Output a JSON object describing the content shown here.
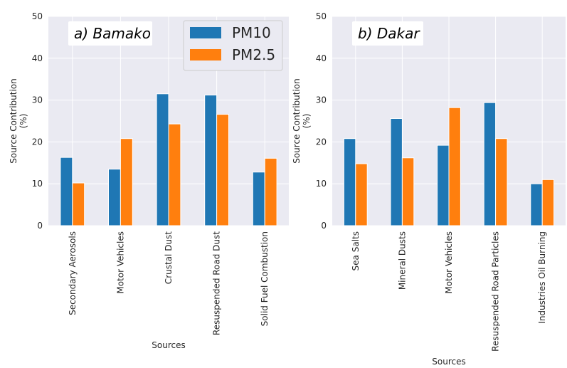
{
  "chart_data": [
    {
      "type": "bar",
      "title": "a) Bamako",
      "categories": [
        "Secondary Aerosols",
        "Motor Vehicles",
        "Crustal Dust",
        "Resuspended Road Dust",
        "Solid Fuel Combustion"
      ],
      "series": [
        {
          "name": "PM10",
          "values": [
            16.3,
            13.5,
            31.5,
            31.2,
            12.8
          ]
        },
        {
          "name": "PM2.5",
          "values": [
            10.2,
            20.8,
            24.3,
            26.6,
            16.1
          ]
        }
      ],
      "xlabel": "Sources",
      "ylabel": "Source Contribution\n(%)",
      "ylim": [
        0,
        50
      ],
      "yticks": [
        0,
        10,
        20,
        30,
        40,
        50
      ],
      "grid": true,
      "legend": "top-right"
    },
    {
      "type": "bar",
      "title": "b) Dakar",
      "categories": [
        "Sea Salts",
        "Mineral Dusts",
        "Motor Vehicles",
        "Resuspended Road Particles",
        "Industries Oil Burning"
      ],
      "series": [
        {
          "name": "PM10",
          "values": [
            20.8,
            25.6,
            19.2,
            29.4,
            10.0
          ]
        },
        {
          "name": "PM2.5",
          "values": [
            14.8,
            16.2,
            28.2,
            20.8,
            11.0
          ]
        }
      ],
      "xlabel": "Sources",
      "ylabel": "Source Contribution\n(%)",
      "ylim": [
        0,
        50
      ],
      "yticks": [
        0,
        10,
        20,
        30,
        40,
        50
      ],
      "grid": true
    }
  ],
  "legend": {
    "entries": [
      {
        "label": "PM10",
        "color": "#1f77b4"
      },
      {
        "label": "PM2.5",
        "color": "#ff7f0e"
      }
    ]
  },
  "colors": {
    "pm10": "#1f77b4",
    "pm25": "#ff7f0e",
    "plot_background": "#eaeaf2",
    "grid": "#ffffff"
  }
}
